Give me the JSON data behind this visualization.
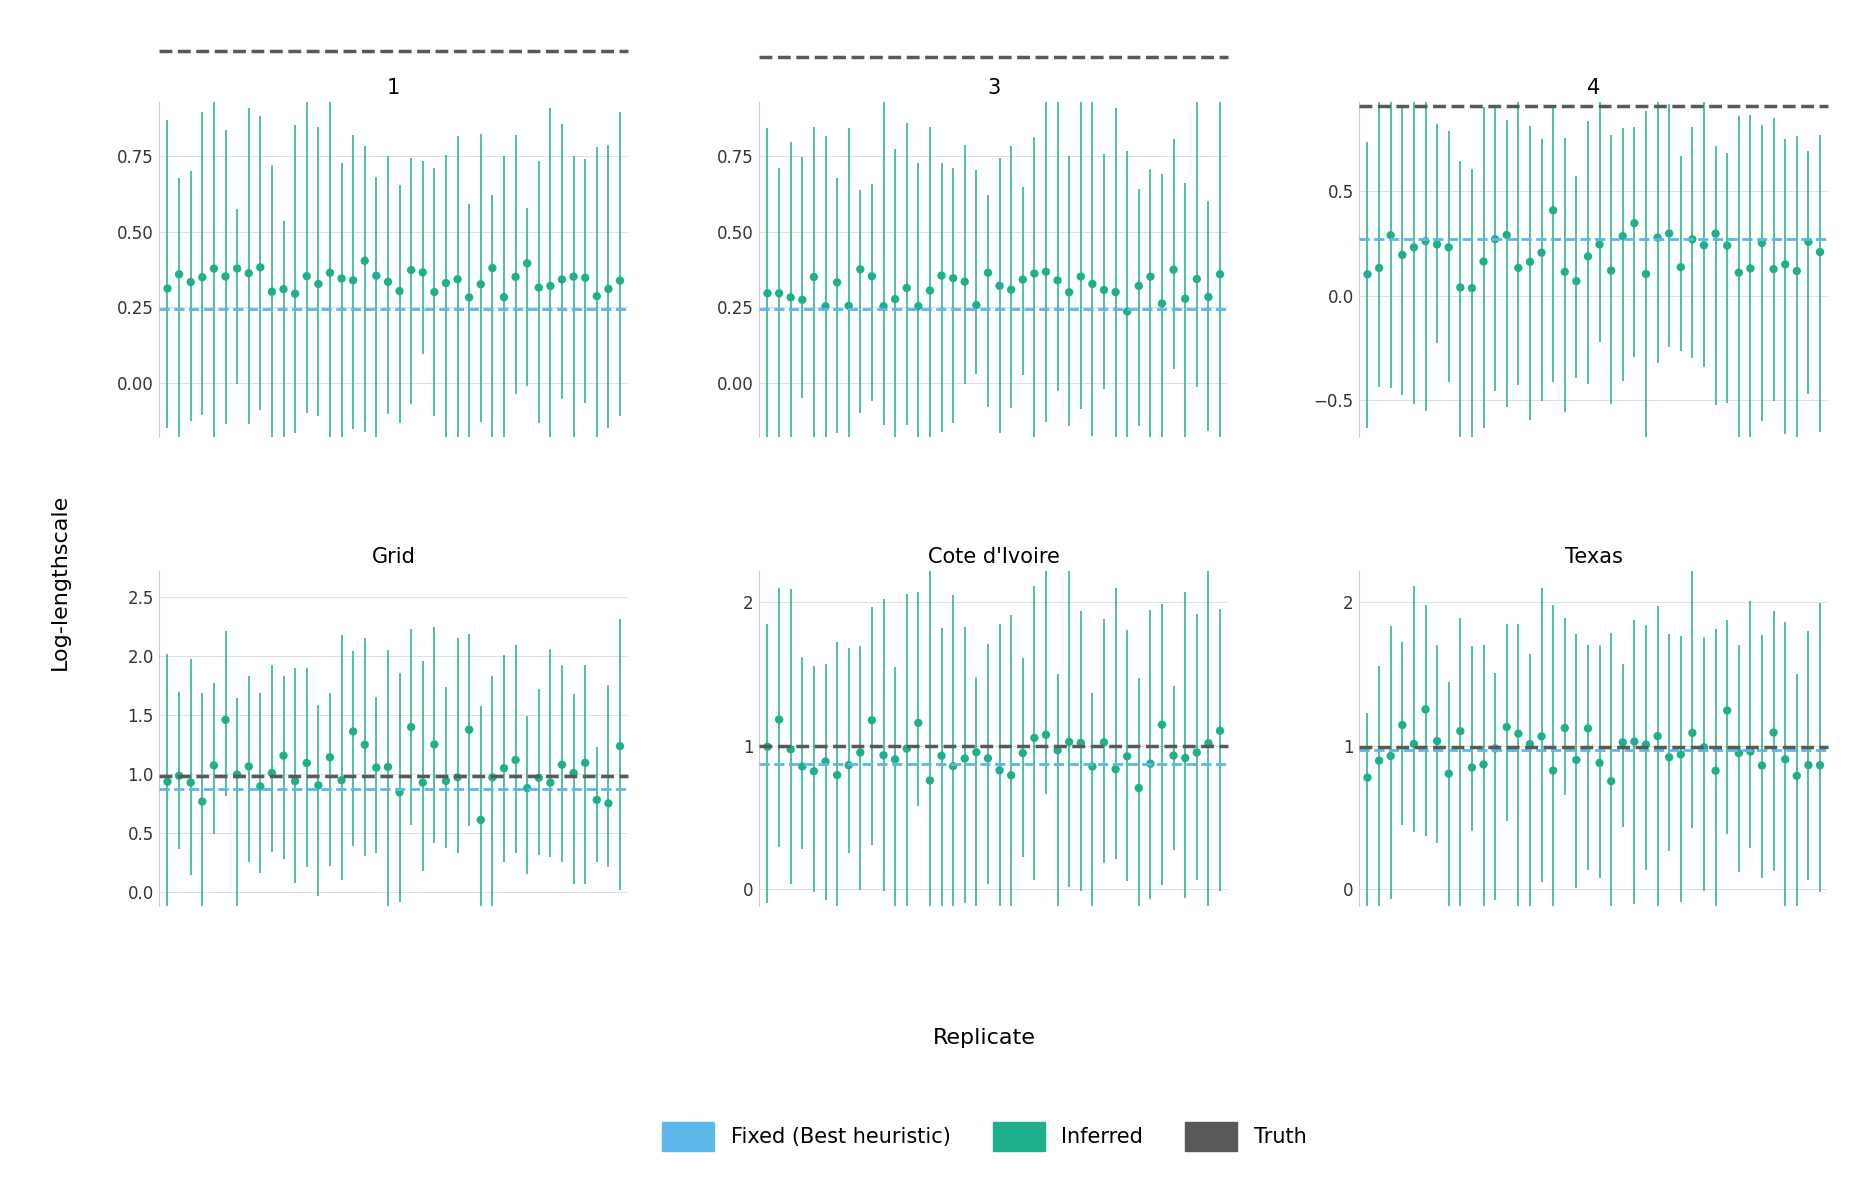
{
  "panels": [
    {
      "title": "1",
      "truth": 1.1,
      "heuristic": 0.245,
      "point_mean": 0.335,
      "point_std": 0.032,
      "ci_lo_mean": 0.5,
      "ci_hi_mean": 0.46,
      "ci_std": 0.12,
      "ylim": [
        -0.18,
        0.93
      ],
      "yticks": [
        0.0,
        0.25,
        0.5,
        0.75
      ]
    },
    {
      "title": "3",
      "truth": 1.08,
      "heuristic": 0.245,
      "point_mean": 0.305,
      "point_std": 0.038,
      "ci_lo_mean": 0.48,
      "ci_hi_mean": 0.47,
      "ci_std": 0.12,
      "ylim": [
        -0.18,
        0.93
      ],
      "yticks": [
        0.0,
        0.25,
        0.5,
        0.75
      ]
    },
    {
      "title": "4",
      "truth": 0.91,
      "heuristic": 0.27,
      "point_mean": 0.195,
      "point_std": 0.072,
      "ci_lo_mean": 0.72,
      "ci_hi_mean": 0.66,
      "ci_std": 0.13,
      "ylim": [
        -0.68,
        0.93
      ],
      "yticks": [
        -0.5,
        0.0,
        0.5
      ]
    },
    {
      "title": "Grid",
      "truth": 0.98,
      "heuristic": 0.875,
      "point_mean": 1.04,
      "point_std": 0.19,
      "ci_lo_mean": 0.88,
      "ci_hi_mean": 0.88,
      "ci_std": 0.22,
      "ylim": [
        -0.12,
        2.72
      ],
      "yticks": [
        0.0,
        0.5,
        1.0,
        1.5,
        2.0,
        2.5
      ]
    },
    {
      "title": "Cote d'Ivoire",
      "truth": 0.995,
      "heuristic": 0.875,
      "point_mean": 0.97,
      "point_std": 0.13,
      "ci_lo_mean": 0.92,
      "ci_hi_mean": 0.92,
      "ci_std": 0.22,
      "ylim": [
        -0.12,
        2.22
      ],
      "yticks": [
        0,
        1,
        2
      ]
    },
    {
      "title": "Texas",
      "truth": 0.99,
      "heuristic": 0.97,
      "point_mean": 0.985,
      "point_std": 0.115,
      "ci_lo_mean": 0.88,
      "ci_hi_mean": 0.86,
      "ci_std": 0.22,
      "ylim": [
        -0.12,
        2.22
      ],
      "yticks": [
        0,
        1,
        2
      ]
    }
  ],
  "n_replicates": 40,
  "green_color": "#1DAF8E",
  "blue_color": "#5BB8E8",
  "gray_color": "#595959",
  "bg_color": "#FFFFFF",
  "ylabel": "Log-lengthscale",
  "xlabel": "Replicate",
  "title_fontsize": 15,
  "label_fontsize": 16,
  "tick_fontsize": 12
}
